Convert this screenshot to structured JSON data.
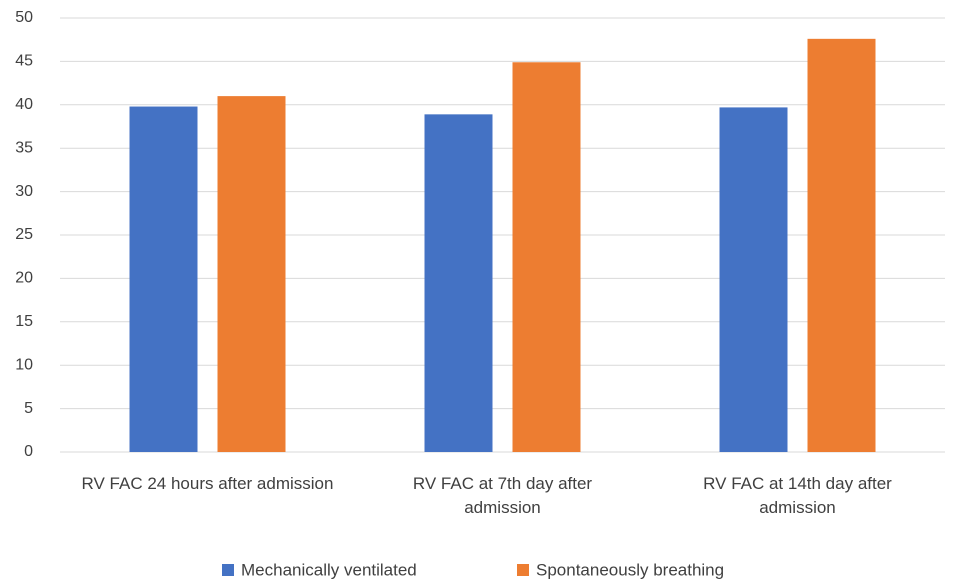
{
  "chart_data": {
    "type": "bar",
    "categories": [
      "RV FAC 24 hours after admission",
      "RV FAC at 7th day after admission",
      "RV FAC at 14th day after admission"
    ],
    "series": [
      {
        "name": "Mechanically ventilated",
        "color": "#4472c4",
        "values": [
          39.8,
          38.9,
          39.7
        ]
      },
      {
        "name": "Spontaneously breathing",
        "color": "#ed7d31",
        "values": [
          41.0,
          44.9,
          47.6
        ]
      }
    ],
    "ylim": [
      0,
      50
    ],
    "yticks": [
      0,
      5,
      10,
      15,
      20,
      25,
      30,
      35,
      40,
      45,
      50
    ],
    "grid": true,
    "legend": "bottom"
  }
}
